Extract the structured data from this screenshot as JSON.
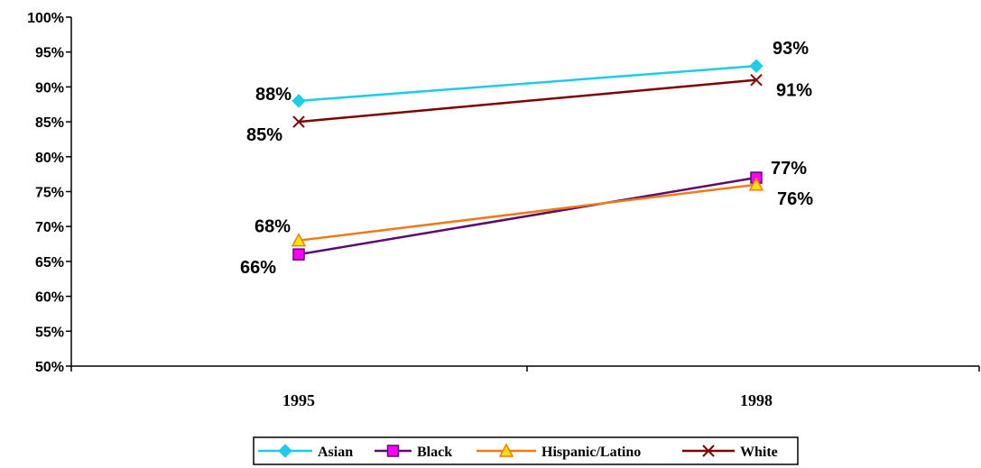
{
  "chart_data": {
    "type": "line",
    "title": "",
    "xlabel": "",
    "ylabel": "",
    "x": [
      "1995",
      "1998"
    ],
    "ylim": [
      50,
      100
    ],
    "ytick_step": 5,
    "y_tick_format": "percent",
    "grid": false,
    "legend_position": "bottom",
    "series": [
      {
        "name": "Asian",
        "values": [
          88,
          93
        ],
        "labels": [
          "88%",
          "93%"
        ],
        "color": "#1ECBEA",
        "marker": "diamond",
        "marker_fill": "#1ECBEA"
      },
      {
        "name": "Black",
        "values": [
          66,
          77
        ],
        "labels": [
          "66%",
          "77%"
        ],
        "color": "#5B0A6E",
        "marker": "square",
        "marker_fill": "#FF00FF"
      },
      {
        "name": "Hispanic/Latino",
        "values": [
          68,
          76
        ],
        "labels": [
          "68%",
          "76%"
        ],
        "color": "#F07A1A",
        "marker": "triangle",
        "marker_fill": "#FFE100"
      },
      {
        "name": "White",
        "values": [
          85,
          91
        ],
        "labels": [
          "85%",
          "91%"
        ],
        "color": "#7F0000",
        "marker": "x",
        "marker_fill": "#7F0000"
      }
    ]
  }
}
